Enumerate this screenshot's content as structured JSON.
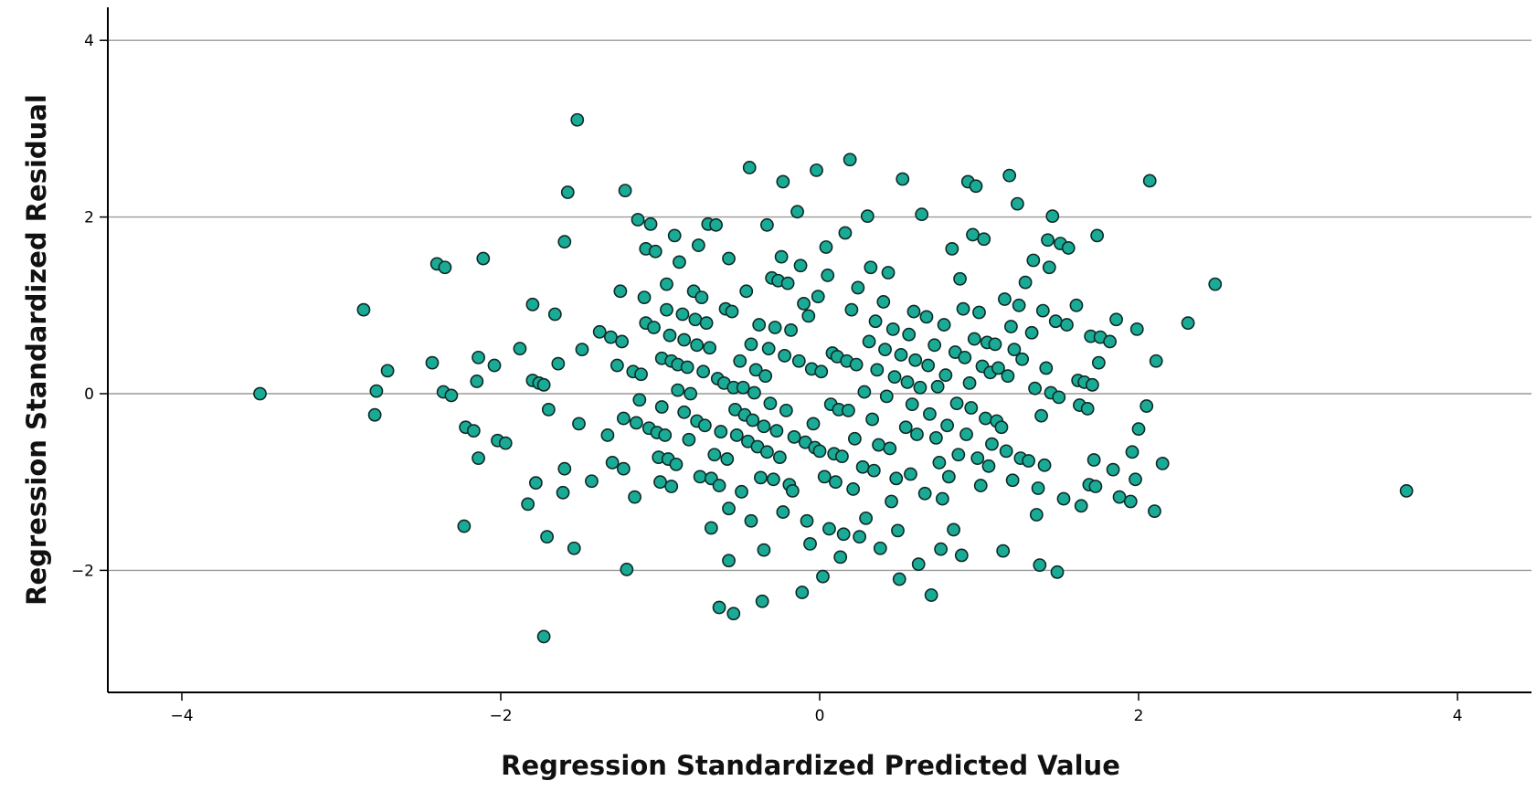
{
  "chart_data": {
    "type": "scatter",
    "title": "",
    "xlabel": "Regression Standardized Predicted Value",
    "ylabel": "Regression Standardized Residual",
    "xlim": [
      -4.4,
      4.4
    ],
    "ylim": [
      -3.4,
      4.35
    ],
    "xticks": [
      -4,
      -2,
      0,
      2,
      4
    ],
    "yticks": [
      -2,
      0,
      2,
      4
    ],
    "y_gridlines": true,
    "x_gridlines": false,
    "legend": "none",
    "marker_color": "#1aab97",
    "marker_edge_color": "#0d2a25",
    "points": [
      [
        -3.51,
        0.0
      ],
      [
        -2.86,
        0.95
      ],
      [
        -2.78,
        0.03
      ],
      [
        -2.79,
        -0.24
      ],
      [
        -2.71,
        0.26
      ],
      [
        -2.43,
        0.35
      ],
      [
        -2.4,
        1.47
      ],
      [
        -2.35,
        1.43
      ],
      [
        -2.36,
        0.02
      ],
      [
        -2.31,
        -0.02
      ],
      [
        -2.22,
        -0.38
      ],
      [
        -2.17,
        -0.42
      ],
      [
        -2.15,
        0.14
      ],
      [
        -2.14,
        0.41
      ],
      [
        -2.14,
        -0.73
      ],
      [
        -2.11,
        1.53
      ],
      [
        -2.23,
        -1.5
      ],
      [
        -2.04,
        0.32
      ],
      [
        -2.02,
        -0.53
      ],
      [
        -1.97,
        -0.56
      ],
      [
        -1.88,
        0.51
      ],
      [
        -1.83,
        -1.25
      ],
      [
        -1.8,
        1.01
      ],
      [
        -1.8,
        0.15
      ],
      [
        -1.78,
        -1.01
      ],
      [
        -1.76,
        0.12
      ],
      [
        -1.73,
        0.1
      ],
      [
        -1.7,
        -0.18
      ],
      [
        -1.71,
        -1.62
      ],
      [
        -1.73,
        -2.75
      ],
      [
        -1.66,
        0.9
      ],
      [
        -1.64,
        0.34
      ],
      [
        -1.61,
        -1.12
      ],
      [
        -1.6,
        -0.85
      ],
      [
        -1.6,
        1.72
      ],
      [
        -1.58,
        2.28
      ],
      [
        -1.54,
        -1.75
      ],
      [
        -1.52,
        3.1
      ],
      [
        -1.51,
        -0.34
      ],
      [
        -1.49,
        0.5
      ],
      [
        -1.43,
        -0.99
      ],
      [
        -1.38,
        0.7
      ],
      [
        -1.33,
        -0.47
      ],
      [
        -1.31,
        0.64
      ],
      [
        -1.3,
        -0.78
      ],
      [
        -1.27,
        0.32
      ],
      [
        -1.24,
        0.59
      ],
      [
        -1.25,
        1.16
      ],
      [
        -1.23,
        -0.85
      ],
      [
        -1.23,
        -0.28
      ],
      [
        -1.21,
        -1.99
      ],
      [
        -1.22,
        2.3
      ],
      [
        -1.17,
        0.25
      ],
      [
        -1.16,
        -1.17
      ],
      [
        -1.15,
        -0.33
      ],
      [
        -1.14,
        1.97
      ],
      [
        -1.13,
        -0.07
      ],
      [
        -1.12,
        0.22
      ],
      [
        -1.1,
        1.09
      ],
      [
        -1.09,
        0.8
      ],
      [
        -1.09,
        1.64
      ],
      [
        -1.07,
        -0.39
      ],
      [
        -1.06,
        1.92
      ],
      [
        -1.04,
        0.75
      ],
      [
        -1.03,
        1.61
      ],
      [
        -1.02,
        -0.44
      ],
      [
        -1.01,
        -0.72
      ],
      [
        -1.0,
        -1.0
      ],
      [
        -0.99,
        -0.15
      ],
      [
        -0.99,
        0.4
      ],
      [
        -0.97,
        -0.47
      ],
      [
        -0.96,
        1.24
      ],
      [
        -0.96,
        0.95
      ],
      [
        -0.95,
        -0.74
      ],
      [
        -0.94,
        0.66
      ],
      [
        -0.93,
        0.37
      ],
      [
        -0.93,
        -1.05
      ],
      [
        -0.91,
        1.79
      ],
      [
        -0.9,
        -0.8
      ],
      [
        -0.89,
        0.33
      ],
      [
        -0.89,
        0.04
      ],
      [
        -0.88,
        1.49
      ],
      [
        -0.86,
        0.9
      ],
      [
        -0.85,
        0.61
      ],
      [
        -0.85,
        -0.21
      ],
      [
        -0.83,
        0.3
      ],
      [
        -0.82,
        -0.52
      ],
      [
        -0.81,
        0.0
      ],
      [
        -0.79,
        1.16
      ],
      [
        -0.78,
        0.84
      ],
      [
        -0.77,
        0.55
      ],
      [
        -0.77,
        -0.31
      ],
      [
        -0.76,
        1.68
      ],
      [
        -0.75,
        -0.94
      ],
      [
        -0.74,
        1.09
      ],
      [
        -0.73,
        0.25
      ],
      [
        -0.72,
        -0.36
      ],
      [
        -0.71,
        0.8
      ],
      [
        -0.7,
        1.92
      ],
      [
        -0.69,
        0.52
      ],
      [
        -0.68,
        -0.96
      ],
      [
        -0.68,
        -1.52
      ],
      [
        -0.66,
        -0.69
      ],
      [
        -0.65,
        1.91
      ],
      [
        -0.64,
        0.17
      ],
      [
        -0.63,
        -1.04
      ],
      [
        -0.62,
        -0.43
      ],
      [
        -0.63,
        -2.42
      ],
      [
        -0.6,
        0.12
      ],
      [
        -0.59,
        0.96
      ],
      [
        -0.58,
        -0.74
      ],
      [
        -0.57,
        -1.3
      ],
      [
        -0.57,
        1.53
      ],
      [
        -0.57,
        -1.89
      ],
      [
        -0.55,
        0.93
      ],
      [
        -0.54,
        0.07
      ],
      [
        -0.53,
        -0.18
      ],
      [
        -0.52,
        -0.47
      ],
      [
        -0.54,
        -2.49
      ],
      [
        -0.5,
        0.37
      ],
      [
        -0.49,
        -1.11
      ],
      [
        -0.48,
        0.07
      ],
      [
        -0.47,
        -0.24
      ],
      [
        -0.46,
        1.16
      ],
      [
        -0.45,
        -0.54
      ],
      [
        -0.44,
        2.56
      ],
      [
        -0.43,
        0.56
      ],
      [
        -0.43,
        -1.44
      ],
      [
        -0.42,
        -0.3
      ],
      [
        -0.41,
        0.01
      ],
      [
        -0.4,
        0.27
      ],
      [
        -0.39,
        -0.6
      ],
      [
        -0.38,
        0.78
      ],
      [
        -0.37,
        -0.95
      ],
      [
        -0.35,
        -1.77
      ],
      [
        -0.36,
        -2.35
      ],
      [
        -0.35,
        -0.37
      ],
      [
        -0.34,
        0.2
      ],
      [
        -0.33,
        -0.66
      ],
      [
        -0.33,
        1.91
      ],
      [
        -0.32,
        0.51
      ],
      [
        -0.31,
        -0.11
      ],
      [
        -0.3,
        1.31
      ],
      [
        -0.29,
        -0.97
      ],
      [
        -0.28,
        0.75
      ],
      [
        -0.27,
        -0.42
      ],
      [
        -0.26,
        1.28
      ],
      [
        -0.25,
        -0.72
      ],
      [
        -0.24,
        1.55
      ],
      [
        -0.23,
        2.4
      ],
      [
        -0.23,
        -1.34
      ],
      [
        -0.22,
        0.43
      ],
      [
        -0.21,
        -0.19
      ],
      [
        -0.2,
        1.25
      ],
      [
        -0.19,
        -1.03
      ],
      [
        -0.18,
        0.72
      ],
      [
        -0.17,
        -1.1
      ],
      [
        -0.16,
        -0.49
      ],
      [
        -0.14,
        2.06
      ],
      [
        -0.13,
        0.37
      ],
      [
        -0.12,
        1.45
      ],
      [
        -0.11,
        -2.25
      ],
      [
        -0.1,
        1.02
      ],
      [
        -0.09,
        -0.55
      ],
      [
        -0.08,
        -1.44
      ],
      [
        -0.07,
        0.88
      ],
      [
        -0.06,
        -1.7
      ],
      [
        -0.05,
        0.28
      ],
      [
        -0.04,
        -0.34
      ],
      [
        -0.03,
        -0.61
      ],
      [
        -0.02,
        2.53
      ],
      [
        -0.01,
        1.1
      ],
      [
        0.0,
        -0.65
      ],
      [
        0.01,
        0.25
      ],
      [
        0.02,
        -2.07
      ],
      [
        0.03,
        -0.94
      ],
      [
        0.04,
        1.66
      ],
      [
        0.05,
        1.34
      ],
      [
        0.06,
        -1.53
      ],
      [
        0.07,
        -0.12
      ],
      [
        0.08,
        0.46
      ],
      [
        0.09,
        -0.68
      ],
      [
        0.1,
        -1.0
      ],
      [
        0.11,
        0.42
      ],
      [
        0.12,
        -0.18
      ],
      [
        0.13,
        -1.85
      ],
      [
        0.14,
        -0.71
      ],
      [
        0.15,
        -1.59
      ],
      [
        0.16,
        1.82
      ],
      [
        0.17,
        0.37
      ],
      [
        0.18,
        -0.19
      ],
      [
        0.19,
        2.65
      ],
      [
        0.2,
        0.95
      ],
      [
        0.21,
        -1.08
      ],
      [
        0.22,
        -0.51
      ],
      [
        0.23,
        0.33
      ],
      [
        0.24,
        1.2
      ],
      [
        0.25,
        -1.62
      ],
      [
        0.27,
        -0.83
      ],
      [
        0.28,
        0.02
      ],
      [
        0.29,
        -1.41
      ],
      [
        0.3,
        2.01
      ],
      [
        0.31,
        0.59
      ],
      [
        0.32,
        1.43
      ],
      [
        0.33,
        -0.29
      ],
      [
        0.34,
        -0.87
      ],
      [
        0.35,
        0.82
      ],
      [
        0.36,
        0.27
      ],
      [
        0.37,
        -0.58
      ],
      [
        0.38,
        -1.75
      ],
      [
        0.4,
        1.04
      ],
      [
        0.41,
        0.5
      ],
      [
        0.42,
        -0.03
      ],
      [
        0.43,
        1.37
      ],
      [
        0.44,
        -0.62
      ],
      [
        0.45,
        -1.22
      ],
      [
        0.46,
        0.73
      ],
      [
        0.47,
        0.19
      ],
      [
        0.48,
        -0.96
      ],
      [
        0.49,
        -1.55
      ],
      [
        0.5,
        -2.1
      ],
      [
        0.51,
        0.44
      ],
      [
        0.52,
        2.43
      ],
      [
        0.54,
        -0.38
      ],
      [
        0.55,
        0.13
      ],
      [
        0.56,
        0.67
      ],
      [
        0.57,
        -0.91
      ],
      [
        0.58,
        -0.12
      ],
      [
        0.59,
        0.93
      ],
      [
        0.6,
        0.38
      ],
      [
        0.61,
        -0.46
      ],
      [
        0.62,
        -1.93
      ],
      [
        0.63,
        0.07
      ],
      [
        0.64,
        2.03
      ],
      [
        0.66,
        -1.13
      ],
      [
        0.67,
        0.87
      ],
      [
        0.68,
        0.32
      ],
      [
        0.69,
        -0.23
      ],
      [
        0.7,
        -2.28
      ],
      [
        0.72,
        0.55
      ],
      [
        0.73,
        -0.5
      ],
      [
        0.74,
        0.08
      ],
      [
        0.75,
        -0.78
      ],
      [
        0.76,
        -1.76
      ],
      [
        0.77,
        -1.19
      ],
      [
        0.78,
        0.78
      ],
      [
        0.79,
        0.21
      ],
      [
        0.8,
        -0.36
      ],
      [
        0.81,
        -0.94
      ],
      [
        0.83,
        1.64
      ],
      [
        0.84,
        -1.54
      ],
      [
        0.85,
        0.47
      ],
      [
        0.86,
        -0.11
      ],
      [
        0.87,
        -0.69
      ],
      [
        0.88,
        1.3
      ],
      [
        0.89,
        -1.83
      ],
      [
        0.9,
        0.96
      ],
      [
        0.91,
        0.41
      ],
      [
        0.92,
        -0.46
      ],
      [
        0.93,
        2.4
      ],
      [
        0.94,
        0.12
      ],
      [
        0.95,
        -0.16
      ],
      [
        0.96,
        1.8
      ],
      [
        0.97,
        0.62
      ],
      [
        0.98,
        2.35
      ],
      [
        0.99,
        -0.73
      ],
      [
        1.0,
        0.92
      ],
      [
        1.01,
        -1.04
      ],
      [
        1.02,
        0.31
      ],
      [
        1.03,
        1.75
      ],
      [
        1.04,
        -0.28
      ],
      [
        1.05,
        0.58
      ],
      [
        1.06,
        -0.82
      ],
      [
        1.07,
        0.24
      ],
      [
        1.08,
        -0.57
      ],
      [
        1.1,
        0.56
      ],
      [
        1.11,
        -0.31
      ],
      [
        1.12,
        0.29
      ],
      [
        1.14,
        -0.38
      ],
      [
        1.15,
        -1.78
      ],
      [
        1.16,
        1.07
      ],
      [
        1.17,
        -0.65
      ],
      [
        1.18,
        0.2
      ],
      [
        1.19,
        2.47
      ],
      [
        1.2,
        0.76
      ],
      [
        1.21,
        -0.98
      ],
      [
        1.22,
        0.5
      ],
      [
        1.24,
        2.15
      ],
      [
        1.25,
        1.0
      ],
      [
        1.26,
        -0.73
      ],
      [
        1.27,
        0.39
      ],
      [
        1.29,
        1.26
      ],
      [
        1.31,
        -0.76
      ],
      [
        1.33,
        0.69
      ],
      [
        1.34,
        1.51
      ],
      [
        1.35,
        0.06
      ],
      [
        1.36,
        -1.37
      ],
      [
        1.37,
        -1.07
      ],
      [
        1.38,
        -1.94
      ],
      [
        1.39,
        -0.25
      ],
      [
        1.4,
        0.94
      ],
      [
        1.41,
        -0.81
      ],
      [
        1.42,
        0.29
      ],
      [
        1.43,
        1.74
      ],
      [
        1.44,
        1.43
      ],
      [
        1.45,
        0.01
      ],
      [
        1.46,
        2.01
      ],
      [
        1.48,
        0.82
      ],
      [
        1.49,
        -2.02
      ],
      [
        1.5,
        -0.04
      ],
      [
        1.51,
        1.7
      ],
      [
        1.53,
        -1.19
      ],
      [
        1.55,
        0.78
      ],
      [
        1.56,
        1.65
      ],
      [
        1.61,
        1.0
      ],
      [
        1.62,
        0.15
      ],
      [
        1.63,
        -0.13
      ],
      [
        1.64,
        -1.27
      ],
      [
        1.66,
        0.13
      ],
      [
        1.68,
        -0.17
      ],
      [
        1.69,
        -1.03
      ],
      [
        1.7,
        0.65
      ],
      [
        1.71,
        0.1
      ],
      [
        1.72,
        -0.75
      ],
      [
        1.73,
        -1.05
      ],
      [
        1.74,
        1.79
      ],
      [
        1.75,
        0.35
      ],
      [
        1.76,
        0.64
      ],
      [
        1.82,
        0.59
      ],
      [
        1.84,
        -0.86
      ],
      [
        1.86,
        0.84
      ],
      [
        1.88,
        -1.17
      ],
      [
        1.95,
        -1.22
      ],
      [
        1.96,
        -0.66
      ],
      [
        1.98,
        -0.97
      ],
      [
        1.99,
        0.73
      ],
      [
        2.0,
        -0.4
      ],
      [
        2.05,
        -0.14
      ],
      [
        2.07,
        2.41
      ],
      [
        2.1,
        -1.33
      ],
      [
        2.11,
        0.37
      ],
      [
        2.15,
        -0.79
      ],
      [
        2.31,
        0.8
      ],
      [
        2.48,
        1.24
      ],
      [
        3.68,
        -1.1
      ]
    ]
  }
}
